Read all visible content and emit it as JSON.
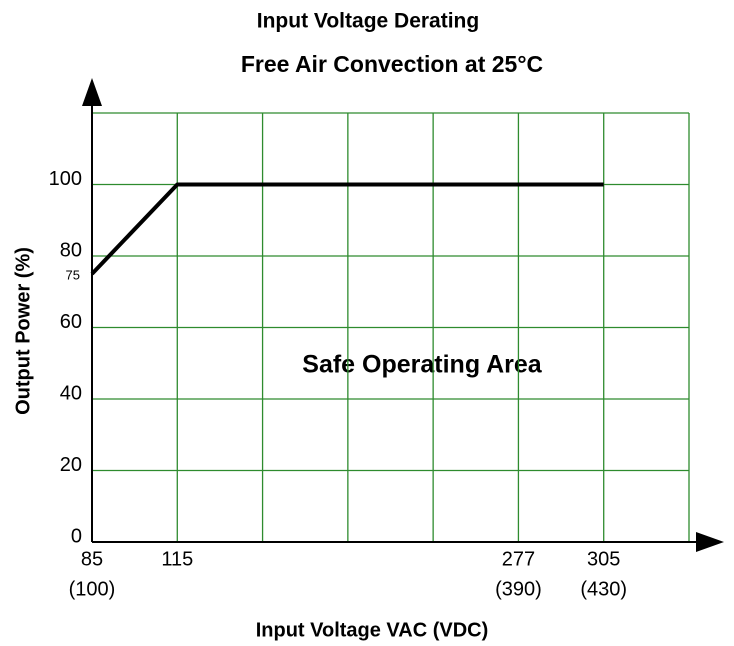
{
  "chart_data": {
    "type": "line",
    "title": "Input Voltage Derating",
    "subtitle": "Free Air Convection at 25°C",
    "x_label": "Input Voltage VAC (VDC)",
    "y_label": "Output Power (%)",
    "annotation": "Safe Operating Area",
    "categories": [
      "85",
      "115",
      null,
      null,
      null,
      "277",
      "305",
      null
    ],
    "category_sublabels": [
      "(100)",
      null,
      null,
      null,
      null,
      "(390)",
      "(430)",
      null
    ],
    "series": [
      {
        "name": null,
        "color": "#000000",
        "values": [
          75,
          100,
          100,
          100,
          100,
          100,
          100,
          null
        ]
      }
    ],
    "ylim": [
      0,
      120
    ],
    "yticks": [
      0,
      20,
      40,
      60,
      80,
      100
    ],
    "yticks_minor": [
      75
    ],
    "grid": true,
    "grid_color": "#2e8b2e"
  }
}
